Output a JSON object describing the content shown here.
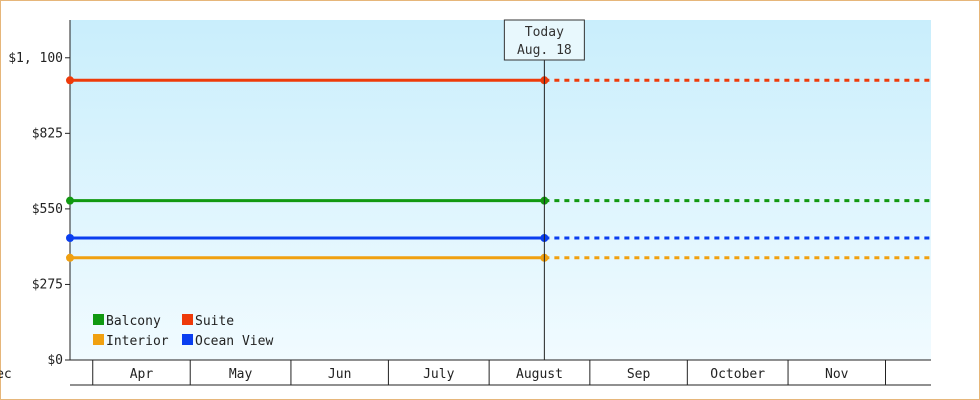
{
  "chart_data": {
    "type": "line",
    "title": "",
    "xlabel": "",
    "ylabel": "",
    "ylim": [
      0,
      1237.5
    ],
    "y_ticks": [
      {
        "value": 0,
        "label": "$0"
      },
      {
        "value": 275,
        "label": "$275"
      },
      {
        "value": 550,
        "label": "$550"
      },
      {
        "value": 825,
        "label": "$825"
      },
      {
        "value": 1100,
        "label": "$1, 100"
      }
    ],
    "x_months": [
      "Apr",
      "May",
      "Jun",
      "July",
      "August",
      "Sep",
      "October",
      "Nov",
      "Dec"
    ],
    "today": {
      "line1": "Today",
      "line2": "Aug. 18",
      "date": "2024-08-18"
    },
    "x_start": "2024-03-25",
    "x_end": "2024-12-15",
    "series": [
      {
        "name": "Suite",
        "color": "#ee3a0a",
        "value": 1018
      },
      {
        "name": "Balcony",
        "color": "#119911",
        "value": 580
      },
      {
        "name": "Ocean View",
        "color": "#0a3ef0",
        "value": 444
      },
      {
        "name": "Interior",
        "color": "#f0a010",
        "value": 372
      }
    ],
    "legend": [
      "Balcony",
      "Suite",
      "Interior",
      "Ocean View"
    ],
    "legend_position": "bottom-left",
    "grid": false
  }
}
